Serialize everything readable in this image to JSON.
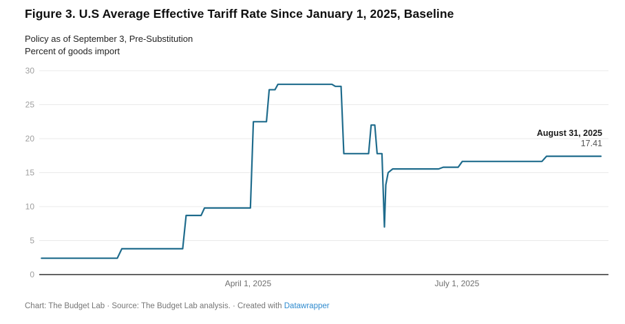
{
  "header": {
    "title": "Figure 3. U.S Average Effective Tariff Rate Since January 1, 2025, Baseline",
    "subtitle_line1": "Policy as of September 3, Pre-Substitution",
    "subtitle_line2": "Percent of goods import"
  },
  "annotation": {
    "date": "August 31, 2025",
    "value": "17.41"
  },
  "footer": {
    "text": "Chart: The Budget Lab · Source: The Budget Lab analysis. · Created with ",
    "link_label": "Datawrapper"
  },
  "chart_data": {
    "type": "line",
    "title": "U.S Average Effective Tariff Rate Since January 1, 2025, Baseline",
    "subtitle": "Policy as of September 3, Pre-Substitution",
    "ylabel": "Percent of goods import",
    "ylim": [
      0,
      30
    ],
    "xlim_days": [
      0,
      248
    ],
    "grid": "horizontal-only",
    "y_ticks": [
      0,
      5,
      10,
      15,
      20,
      25,
      30
    ],
    "x_ticks": [
      {
        "day": 91,
        "label": "April 1, 2025"
      },
      {
        "day": 182,
        "label": "July 1, 2025"
      }
    ],
    "series_name": "U.S. average effective tariff rate",
    "line_color": "#1e6b8c",
    "grid_color": "#e9e9e9",
    "axis_color": "#4d4d4d",
    "y_tick_color": "#9e9e9e",
    "x_tick_color": "#6e6e6e",
    "end_label": {
      "date": "August 31, 2025",
      "value": 17.41
    },
    "points": [
      [
        1,
        2.4
      ],
      [
        34,
        2.4
      ],
      [
        36,
        3.8
      ],
      [
        62.5,
        3.8
      ],
      [
        64,
        8.7
      ],
      [
        70.5,
        8.7
      ],
      [
        72,
        9.8
      ],
      [
        92,
        9.8
      ],
      [
        93.3,
        22.5
      ],
      [
        99,
        22.5
      ],
      [
        100.2,
        27.2
      ],
      [
        102.7,
        27.2
      ],
      [
        104,
        28.0
      ],
      [
        127.5,
        28.0
      ],
      [
        129,
        27.7
      ],
      [
        131.5,
        27.7
      ],
      [
        132.7,
        17.8
      ],
      [
        143.5,
        17.8
      ],
      [
        144.6,
        22.0
      ],
      [
        146.2,
        22.0
      ],
      [
        147.2,
        17.8
      ],
      [
        149.3,
        17.8
      ],
      [
        150.4,
        7.0
      ],
      [
        151,
        13.2
      ],
      [
        152,
        15.0
      ],
      [
        154,
        15.55
      ],
      [
        174,
        15.55
      ],
      [
        176,
        15.8
      ],
      [
        182.5,
        15.8
      ],
      [
        184.3,
        16.65
      ],
      [
        219,
        16.65
      ],
      [
        221,
        17.41
      ],
      [
        244.7,
        17.41
      ]
    ]
  }
}
